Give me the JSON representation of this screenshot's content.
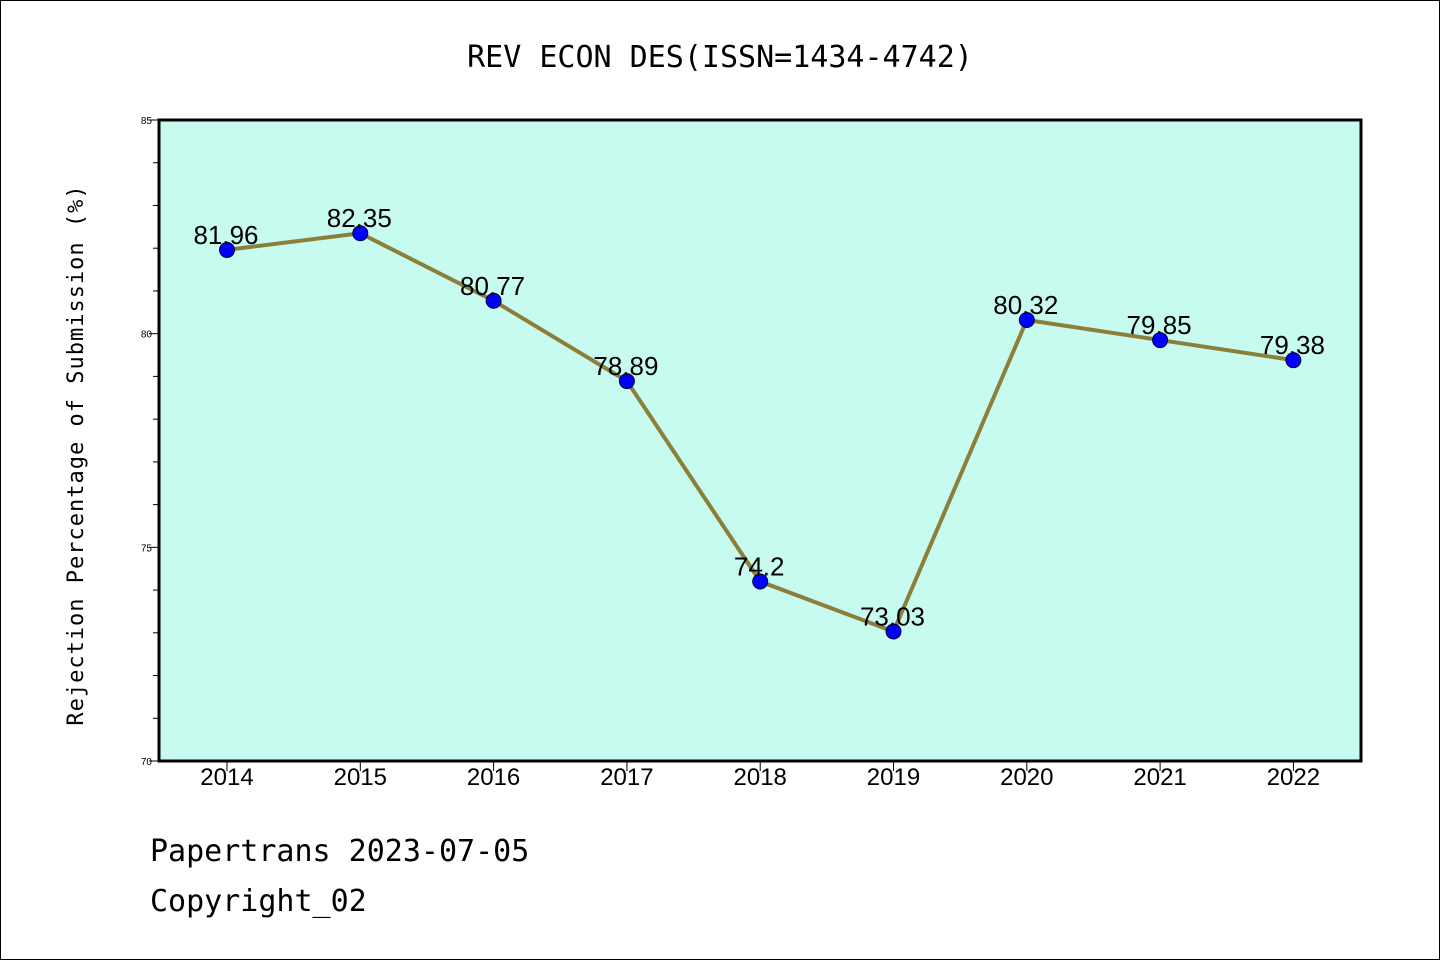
{
  "chart_data": {
    "type": "line",
    "title": "REV ECON DES(ISSN=1434-4742)",
    "xlabel": "",
    "ylabel": "Rejection Percentage of Submission (%)",
    "categories": [
      "2014",
      "2015",
      "2016",
      "2017",
      "2018",
      "2019",
      "2020",
      "2021",
      "2022"
    ],
    "series": [
      {
        "values": [
          81.96,
          82.35,
          80.77,
          78.89,
          74.2,
          73.03,
          80.32,
          79.85,
          79.38
        ],
        "labels": [
          "81.96",
          "82.35",
          "80.77",
          "78.89",
          "74.2",
          "73.03",
          "80.32",
          "79.85",
          "79.38"
        ]
      }
    ],
    "ylim": [
      70,
      85
    ],
    "yticks": [
      "70",
      "75",
      "80",
      "85"
    ],
    "grid": false,
    "colors": {
      "plot_background": "#c8fbef",
      "line": "#8b7f3a",
      "marker": "#0000ff"
    }
  },
  "footer": {
    "line1": "Papertrans 2023-07-05",
    "line2": "Copyright_02"
  }
}
